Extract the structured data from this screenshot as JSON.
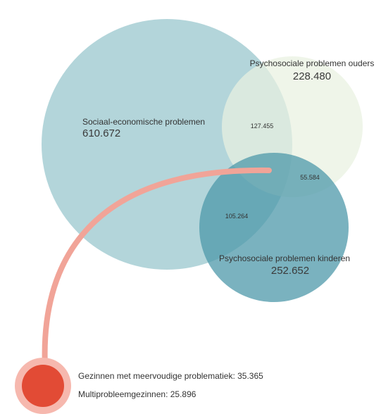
{
  "sets": {
    "socio_economic": {
      "label": "Sociaal-economische problemen",
      "value": "610.672",
      "color": "#9ec9cf"
    },
    "parents": {
      "label": "Psychosociale problemen ouders",
      "value": "228.480",
      "color": "#eef4e8"
    },
    "children": {
      "label": "Psychosociale problemen kinderen",
      "value": "252.652",
      "color": "#5aa2b1"
    }
  },
  "intersections": {
    "socio_parents": "127.455",
    "parents_children": "55.584",
    "socio_children": "105.264"
  },
  "legend": {
    "multiple_problems": "Gezinnen met meervoudige problematiek: 35.365",
    "multiproblem_families": "Multiprobleemgezinnen: 25.896"
  },
  "colors": {
    "arc": "#f1a498",
    "marker_outer": "#f6b8ae",
    "marker_inner": "#e24b35"
  }
}
